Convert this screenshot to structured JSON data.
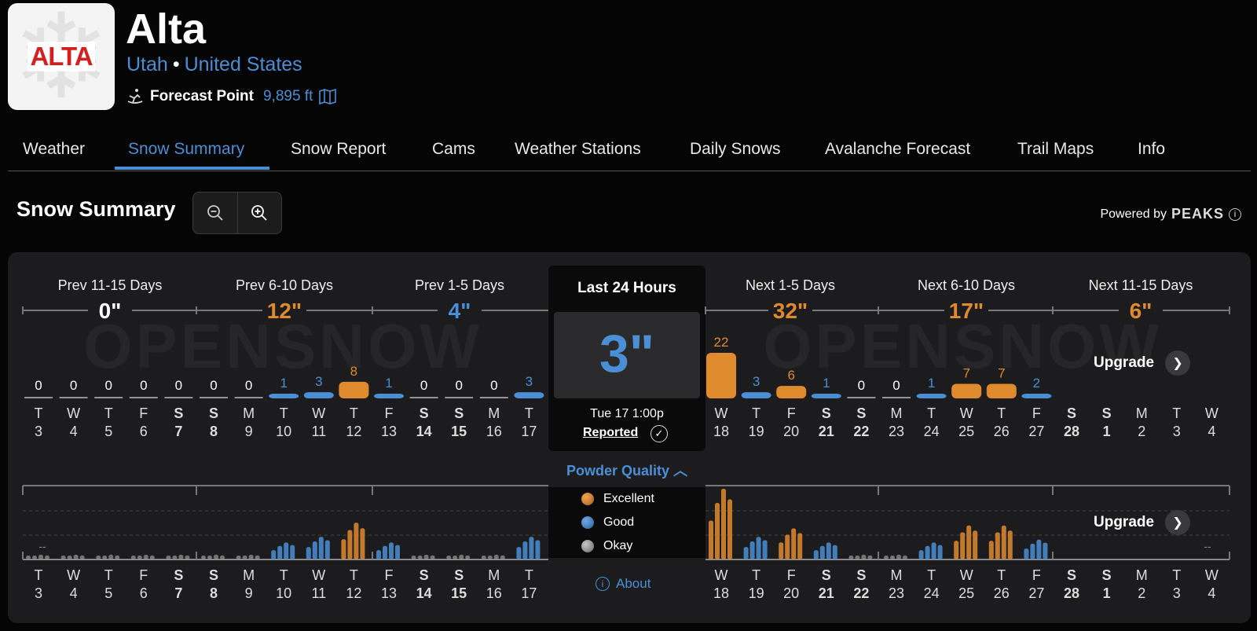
{
  "resort": {
    "name": "Alta",
    "logo_text": "ALTA",
    "region": "Utah",
    "country": "United States",
    "forecast_point_label": "Forecast Point",
    "elevation": "9,895 ft"
  },
  "tabs": [
    "Weather",
    "Snow Summary",
    "Snow Report",
    "Cams",
    "Weather Stations",
    "Daily Snows",
    "Avalanche Forecast",
    "Trail Maps",
    "Info"
  ],
  "active_tab": "Snow Summary",
  "summary": {
    "title": "Snow Summary",
    "powered_by": "Powered by",
    "powered_brand": "PEAKS",
    "watermark": "OPENSNOW"
  },
  "periods": [
    {
      "label": "Prev 11-15 Days",
      "total": "0\"",
      "color": "#ffffff"
    },
    {
      "label": "Prev 6-10 Days",
      "total": "12\"",
      "color": "#e08a2e"
    },
    {
      "label": "Prev 1-5 Days",
      "total": "4\"",
      "color": "#4a8fd6"
    },
    {
      "label": "Next 1-5 Days",
      "total": "32\"",
      "color": "#e08a2e"
    },
    {
      "label": "Next 6-10 Days",
      "total": "17\"",
      "color": "#e08a2e"
    },
    {
      "label": "Next 11-15 Days",
      "total": "6\"",
      "color": "#e08a2e"
    }
  ],
  "last24": {
    "title": "Last 24 Hours",
    "value": "3\"",
    "datetime": "Tue 17 1:00p",
    "status": "Reported"
  },
  "past_days": [
    {
      "dow": "T",
      "date": "3",
      "value": "0",
      "weekend": false,
      "quality": "none"
    },
    {
      "dow": "W",
      "date": "4",
      "value": "0",
      "weekend": false,
      "quality": "none"
    },
    {
      "dow": "T",
      "date": "5",
      "value": "0",
      "weekend": false,
      "quality": "none"
    },
    {
      "dow": "F",
      "date": "6",
      "value": "0",
      "weekend": false,
      "quality": "none"
    },
    {
      "dow": "S",
      "date": "7",
      "value": "0",
      "weekend": true,
      "quality": "none"
    },
    {
      "dow": "S",
      "date": "8",
      "value": "0",
      "weekend": true,
      "quality": "none"
    },
    {
      "dow": "M",
      "date": "9",
      "value": "0",
      "weekend": false,
      "quality": "none"
    },
    {
      "dow": "T",
      "date": "10",
      "value": "1",
      "weekend": false,
      "quality": "good"
    },
    {
      "dow": "W",
      "date": "11",
      "value": "3",
      "weekend": false,
      "quality": "good"
    },
    {
      "dow": "T",
      "date": "12",
      "value": "8",
      "weekend": false,
      "quality": "excellent"
    },
    {
      "dow": "F",
      "date": "13",
      "value": "1",
      "weekend": false,
      "quality": "good"
    },
    {
      "dow": "S",
      "date": "14",
      "value": "0",
      "weekend": true,
      "quality": "none"
    },
    {
      "dow": "S",
      "date": "15",
      "value": "0",
      "weekend": true,
      "quality": "none"
    },
    {
      "dow": "M",
      "date": "16",
      "value": "0",
      "weekend": false,
      "quality": "none"
    },
    {
      "dow": "T",
      "date": "17",
      "value": "3",
      "weekend": false,
      "quality": "good"
    }
  ],
  "future_days": [
    {
      "dow": "W",
      "date": "18",
      "value": "22",
      "weekend": false,
      "quality": "excellent"
    },
    {
      "dow": "T",
      "date": "19",
      "value": "3",
      "weekend": false,
      "quality": "good"
    },
    {
      "dow": "F",
      "date": "20",
      "value": "6",
      "weekend": false,
      "quality": "excellent"
    },
    {
      "dow": "S",
      "date": "21",
      "value": "1",
      "weekend": true,
      "quality": "good"
    },
    {
      "dow": "S",
      "date": "22",
      "value": "0",
      "weekend": true,
      "quality": "none"
    },
    {
      "dow": "M",
      "date": "23",
      "value": "0",
      "weekend": false,
      "quality": "none"
    },
    {
      "dow": "T",
      "date": "24",
      "value": "1",
      "weekend": false,
      "quality": "good"
    },
    {
      "dow": "W",
      "date": "25",
      "value": "7",
      "weekend": false,
      "quality": "excellent"
    },
    {
      "dow": "T",
      "date": "26",
      "value": "7",
      "weekend": false,
      "quality": "excellent"
    },
    {
      "dow": "F",
      "date": "27",
      "value": "2",
      "weekend": false,
      "quality": "good"
    },
    {
      "dow": "S",
      "date": "28",
      "value": "",
      "weekend": true,
      "quality": "locked"
    },
    {
      "dow": "S",
      "date": "1",
      "value": "",
      "weekend": true,
      "quality": "locked"
    },
    {
      "dow": "M",
      "date": "2",
      "value": "",
      "weekend": false,
      "quality": "locked"
    },
    {
      "dow": "T",
      "date": "3",
      "value": "",
      "weekend": false,
      "quality": "locked"
    },
    {
      "dow": "W",
      "date": "4",
      "value": "",
      "weekend": false,
      "quality": "locked"
    }
  ],
  "powder_quality": {
    "title": "Powder Quality",
    "legend": [
      {
        "label": "Excellent",
        "color": "#e08a2e"
      },
      {
        "label": "Good",
        "color": "#4a8fd6"
      },
      {
        "label": "Okay",
        "color": "#9a9a9a"
      }
    ],
    "about": "About",
    "empty_marker": "--"
  },
  "upgrade_label": "Upgrade",
  "colors": {
    "accent": "#4a8fd6",
    "excellent": "#e08a2e",
    "good": "#4a8fd6",
    "okay": "#9a9a9a",
    "panel_bg": "#1c1c1e"
  }
}
